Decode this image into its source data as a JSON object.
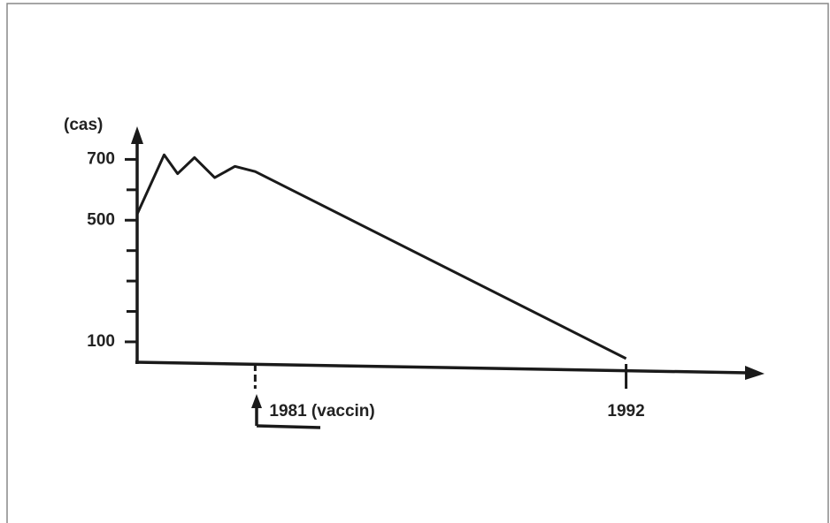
{
  "chart_data": {
    "type": "line",
    "y_label": "(cas)",
    "x": [
      1977.5,
      1978.3,
      1978.7,
      1979.2,
      1979.8,
      1980.4,
      1981,
      1992
    ],
    "series": [
      {
        "color": "#1a1a1a",
        "values": [
          520,
          715,
          653,
          706,
          640,
          677,
          660,
          45
        ]
      }
    ],
    "xlim": [
      1977.5,
      1996
    ],
    "ylim": [
      33,
      800
    ],
    "xticks": [
      {
        "value": 1981,
        "label": "1981 (vaccin)"
      },
      1992
    ],
    "yticks": [
      100,
      500,
      700
    ],
    "minor_yticks": [
      200,
      300,
      400,
      600
    ]
  }
}
